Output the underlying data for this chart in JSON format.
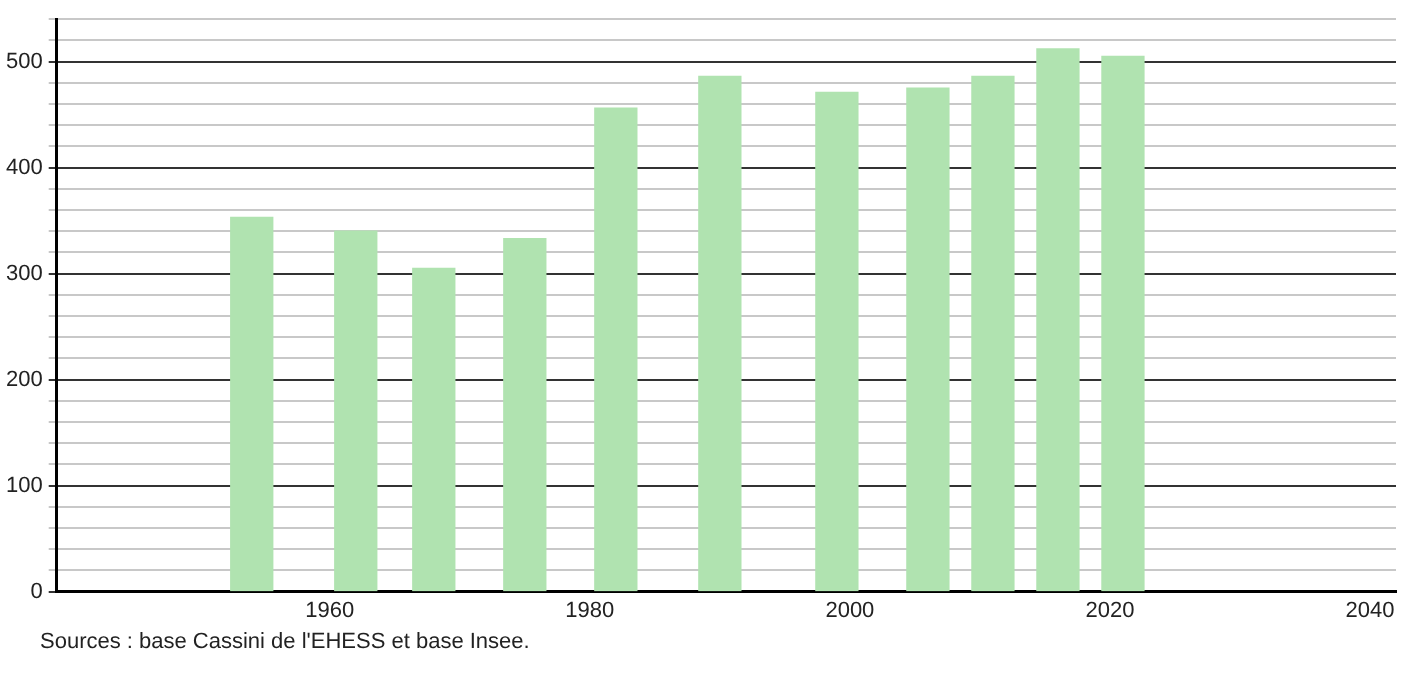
{
  "chart_data": {
    "type": "bar",
    "x": [
      1954,
      1962,
      1968,
      1975,
      1982,
      1990,
      1999,
      2006,
      2011,
      2016,
      2021
    ],
    "values": [
      353,
      340,
      305,
      333,
      456,
      486,
      471,
      475,
      486,
      512,
      505
    ],
    "color": "#b0e3b0",
    "xlim": [
      1939,
      2042
    ],
    "xticks": [
      1960,
      1980,
      2000,
      2020,
      2040
    ],
    "ylim": [
      0,
      540
    ],
    "yticks": [
      0,
      {
        "value": 20,
        "label": null
      },
      {
        "value": 40,
        "label": null
      },
      {
        "value": 60,
        "label": null
      },
      {
        "value": 80,
        "label": null
      },
      100,
      {
        "value": 120,
        "label": null
      },
      {
        "value": 140,
        "label": null
      },
      {
        "value": 160,
        "label": null
      },
      {
        "value": 180,
        "label": null
      },
      200,
      {
        "value": 220,
        "label": null
      },
      {
        "value": 240,
        "label": null
      },
      {
        "value": 260,
        "label": null
      },
      {
        "value": 280,
        "label": null
      },
      300,
      {
        "value": 320,
        "label": null
      },
      {
        "value": 340,
        "label": null
      },
      {
        "value": 360,
        "label": null
      },
      {
        "value": 380,
        "label": null
      },
      400,
      {
        "value": 420,
        "label": null
      },
      {
        "value": 440,
        "label": null
      },
      {
        "value": 460,
        "label": null
      },
      {
        "value": 480,
        "label": null
      },
      500,
      {
        "value": 520,
        "label": null
      },
      {
        "value": 540,
        "label": null
      }
    ],
    "grid": "y",
    "annotations": [
      "Sources : base Cassini de l'EHESS et base Insee."
    ]
  }
}
